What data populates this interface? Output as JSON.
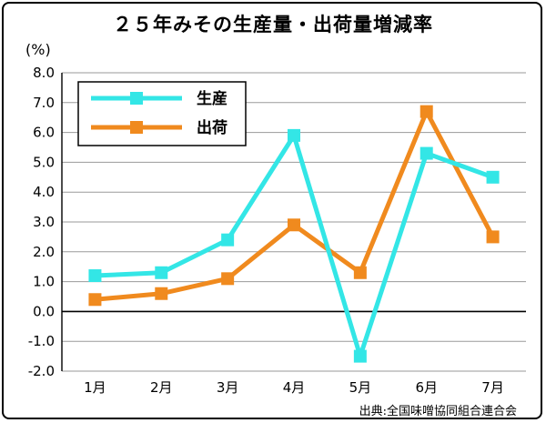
{
  "chart_data": {
    "type": "line",
    "title": "２５年みその生産量・出荷量増減率",
    "unit_label": "(%)",
    "categories": [
      "1月",
      "2月",
      "3月",
      "4月",
      "5月",
      "6月",
      "7月"
    ],
    "y_ticks": [
      "8.0",
      "7.0",
      "6.0",
      "5.0",
      "4.0",
      "3.0",
      "2.0",
      "1.0",
      "0.0",
      "-1.0",
      "-2.0"
    ],
    "ylim": [
      -2.0,
      8.0
    ],
    "grid": "horizontal",
    "legend_position": "top-left",
    "series": [
      {
        "name": "生産",
        "color": "#33e6e6",
        "values": [
          1.2,
          1.3,
          2.4,
          5.9,
          -1.5,
          5.3,
          4.5
        ]
      },
      {
        "name": "出荷",
        "color": "#f08a1e",
        "values": [
          0.4,
          0.6,
          1.1,
          2.9,
          1.3,
          6.7,
          2.5
        ]
      }
    ],
    "source": "出典:全国味噌協同組合連合会"
  }
}
